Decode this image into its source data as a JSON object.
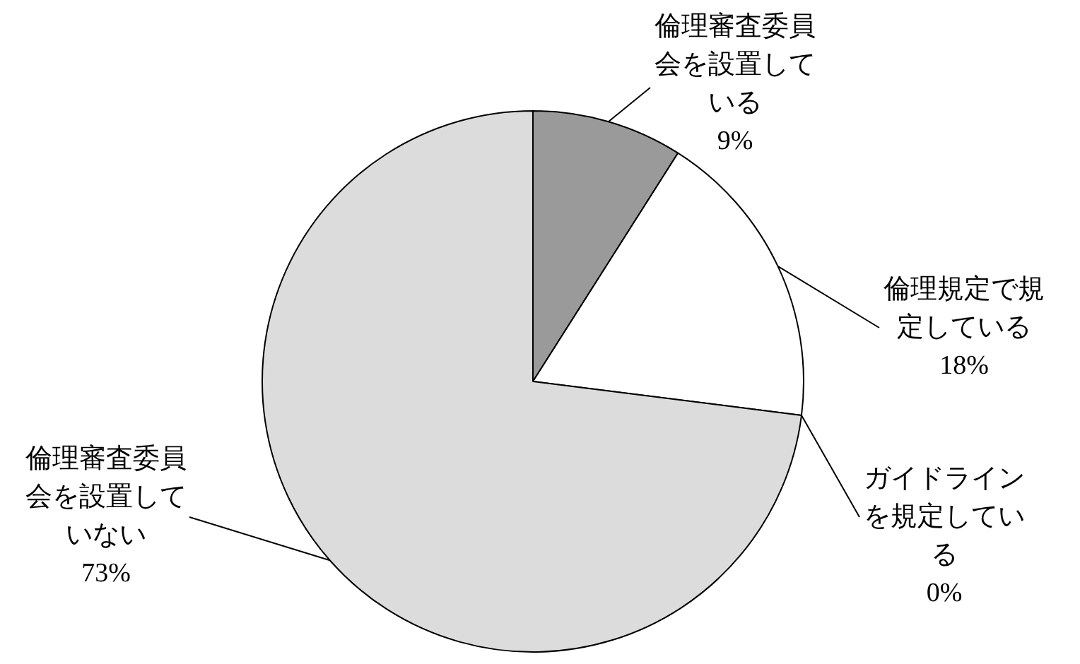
{
  "chart_data": {
    "type": "pie",
    "categories": [
      "倫理審査委員会を設置している",
      "倫理規定で規定している",
      "ガイドラインを規定している",
      "倫理審査委員会を設置していない"
    ],
    "values": [
      9,
      18,
      0,
      73
    ],
    "value_labels": [
      "9%",
      "18%",
      "0%",
      "73%"
    ],
    "colors": [
      "#9a9a9a",
      "#ffffff",
      "#000000",
      "#dcdcdc"
    ],
    "legend": false
  }
}
